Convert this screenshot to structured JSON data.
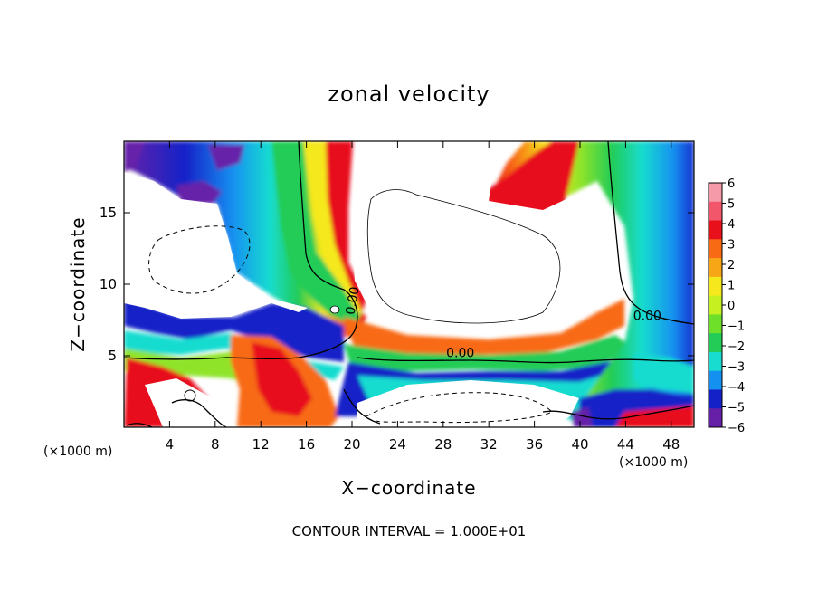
{
  "chart_data": {
    "type": "heatmap",
    "title": "zonal velocity",
    "xlabel": "X−coordinate",
    "ylabel": "Z−coordinate",
    "x_unit_left": "(×1000 m)",
    "x_unit_right": "(×1000 m)",
    "xlim": [
      0,
      50
    ],
    "ylim": [
      0,
      20
    ],
    "x_ticks": [
      4,
      8,
      12,
      16,
      20,
      24,
      28,
      32,
      36,
      40,
      44,
      48
    ],
    "y_ticks": [
      5,
      10,
      15
    ],
    "colorbar": {
      "ticks": [
        6,
        5,
        4,
        3,
        2,
        1,
        0,
        -1,
        -2,
        -3,
        -4,
        -5,
        -6
      ],
      "colors": [
        "#f59aa8",
        "#f2566a",
        "#e8101a",
        "#f86a14",
        "#f7a616",
        "#f5e81c",
        "#c6f020",
        "#6ee02a",
        "#22cc56",
        "#18dcd0",
        "#1490f0",
        "#1420c8",
        "#6620a8"
      ]
    },
    "contour_labels": [
      {
        "text": "0.00",
        "x": 29.5,
        "z": 4.9
      },
      {
        "text": "0.00",
        "x": 45.9,
        "z": 7.5
      },
      {
        "text": "0.00",
        "x": 20.4,
        "z": 8.8
      }
    ],
    "footer": "CONTOUR INTERVAL = 1.000E+01"
  }
}
